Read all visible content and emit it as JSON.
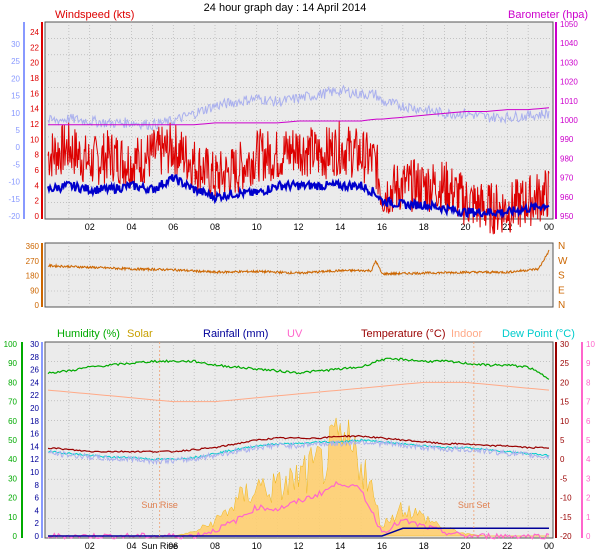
{
  "title": "24 hour graph day : 14 April 2014",
  "colors": {
    "wind": "#dd0000",
    "gust_avg": "#0000cc",
    "barometer": "#cc00cc",
    "direction": "#cc6600",
    "humidity": "#00aa00",
    "solar": "#f0b000",
    "rainfall": "#000099",
    "uv": "#ff66cc",
    "temperature": "#990000",
    "indoor": "#ffaa88",
    "dewpoint": "#00cccc",
    "left_axis_blue": "#8899ff",
    "grid": "#999999"
  },
  "chart_data": [
    {
      "type": "line",
      "name": "wind-barometer",
      "legend": {
        "left": "Windspeed (kts)",
        "right": "Barometer (hpa)"
      },
      "x_ticks": [
        "02",
        "04",
        "06",
        "08",
        "10",
        "12",
        "14",
        "16",
        "18",
        "20",
        "22",
        "00"
      ],
      "y_left_ticks": [
        "24",
        "22",
        "20",
        "18",
        "16",
        "14",
        "12",
        "10",
        "8",
        "6",
        "4",
        "2",
        "0"
      ],
      "y_left_outer_ticks": [
        "30",
        "25",
        "20",
        "15",
        "10",
        "5",
        "0",
        "-5",
        "-10",
        "-15",
        "-20"
      ],
      "y_right_ticks": [
        "1050",
        "1040",
        "1030",
        "1020",
        "1010",
        "1000",
        "990",
        "980",
        "970",
        "960",
        "950"
      ],
      "ylim_left": [
        0,
        25
      ],
      "ylim_right": [
        950,
        1050
      ],
      "hours": [
        0,
        1,
        2,
        3,
        4,
        5,
        6,
        7,
        8,
        9,
        10,
        11,
        12,
        13,
        14,
        15,
        15.7,
        16,
        17,
        18,
        19,
        20,
        21,
        22,
        23,
        24
      ],
      "series": [
        {
          "name": "Windspeed (kts)",
          "values": [
            8,
            9,
            7,
            8,
            7,
            8,
            9,
            7,
            5,
            6,
            8,
            8,
            9,
            8,
            9,
            8,
            7,
            3,
            4,
            4,
            4,
            2,
            1,
            1,
            2,
            3
          ]
        },
        {
          "values": [
            3.5,
            4,
            3.5,
            3.5,
            4,
            3.5,
            5,
            3.5,
            2.5,
            3,
            3,
            4,
            4,
            4,
            4,
            4,
            3,
            2,
            1.5,
            1.5,
            1,
            0.5,
            0.5,
            0.5,
            1,
            1.5
          ]
        },
        {
          "values": [
            12.5,
            12.8,
            12.5,
            12.2,
            12.3,
            12,
            12.5,
            13.5,
            14.5,
            15,
            15.5,
            15,
            15.5,
            16,
            16.5,
            16,
            16,
            15,
            14.5,
            14,
            13.5,
            13.5,
            13,
            13,
            13.2,
            13.5
          ]
        },
        {
          "name": "Barometer (hpa)",
          "values": [
            998,
            998,
            998,
            998,
            998,
            998,
            998,
            998,
            999,
            999,
            999,
            999,
            1000,
            1000,
            1000,
            1000,
            1001,
            1001,
            1002,
            1003,
            1004,
            1005,
            1005,
            1006,
            1006,
            1007
          ]
        }
      ]
    },
    {
      "type": "line",
      "name": "wind-direction",
      "y_left_ticks": [
        "360",
        "270",
        "180",
        "90",
        "0"
      ],
      "y_right_ticks": [
        "N",
        "W",
        "S",
        "E",
        "N"
      ],
      "ylim": [
        0,
        360
      ],
      "hours": [
        0,
        2,
        4,
        6,
        8,
        10,
        12,
        14,
        15.5,
        15.7,
        16,
        18,
        20,
        22,
        23.5,
        24
      ],
      "series": [
        {
          "values": [
            240,
            230,
            220,
            215,
            200,
            205,
            195,
            210,
            210,
            270,
            190,
            195,
            200,
            200,
            220,
            330
          ]
        }
      ]
    },
    {
      "type": "line",
      "name": "humidity-temperature",
      "legend": [
        "Humidity (%)",
        "Solar",
        "Rainfall (mm)",
        "UV",
        "Temperature (°C)",
        "Indoor",
        "Dew Point (°C)"
      ],
      "x_ticks": [
        "02",
        "04",
        "Sun Rise",
        "06",
        "08",
        "10",
        "12",
        "14",
        "16",
        "18",
        "20",
        "22",
        "00"
      ],
      "y_humidity_ticks": [
        "100",
        "90",
        "80",
        "70",
        "60",
        "50",
        "40",
        "30",
        "20",
        "10",
        "0"
      ],
      "y_rain_ticks": [
        "30",
        "28",
        "26",
        "24",
        "22",
        "20",
        "18",
        "16",
        "14",
        "12",
        "10",
        "8",
        "6",
        "4",
        "2",
        "0"
      ],
      "y_temp_ticks": [
        "30",
        "25",
        "20",
        "15",
        "10",
        "5",
        "0",
        "-5",
        "-10",
        "-15",
        "-20"
      ],
      "y_uv_ticks": [
        "10",
        "9",
        "8",
        "7",
        "6",
        "5",
        "4",
        "3",
        "2",
        "1",
        "0"
      ],
      "annotations": [
        "Sun Rise",
        "Sun Set"
      ],
      "hours": [
        0,
        1,
        2,
        3,
        4,
        5,
        6,
        7,
        8,
        9,
        10,
        11,
        12,
        13,
        14,
        15,
        16,
        17,
        18,
        19,
        20,
        21,
        22,
        23,
        24
      ],
      "series": [
        {
          "name": "Humidity (%)",
          "values": [
            85,
            86,
            88,
            89,
            90,
            91,
            91,
            91,
            89,
            88,
            87,
            86,
            85,
            86,
            87,
            88,
            92,
            92,
            91,
            91,
            90,
            89,
            89,
            88,
            82
          ]
        },
        {
          "name": "Temperature (°C)",
          "values": [
            3,
            2.5,
            2,
            2,
            2,
            2,
            2,
            2.5,
            3,
            4,
            5,
            5.5,
            5.5,
            5.5,
            6,
            6,
            5.5,
            5,
            4.5,
            4,
            4,
            3.5,
            3.5,
            3,
            3
          ]
        },
        {
          "name": "Indoor",
          "values": [
            18,
            17.5,
            17,
            16.5,
            16,
            15.5,
            15,
            15,
            15,
            15.5,
            16,
            16.5,
            17,
            17.5,
            18,
            18.5,
            19,
            19.5,
            20,
            20,
            20,
            19.5,
            19,
            18.5,
            18
          ]
        },
        {
          "name": "Dew Point (°C)",
          "values": [
            2,
            1.5,
            1,
            0.5,
            0.5,
            0,
            0,
            0.5,
            1.5,
            2.5,
            3.5,
            4,
            4,
            4.5,
            4.5,
            5,
            4.5,
            4,
            3.5,
            3,
            3,
            2.5,
            2,
            1.5,
            1
          ]
        },
        {
          "name": "Solar",
          "values": [
            0,
            0,
            0,
            0,
            0,
            0,
            0,
            0.2,
            0.7,
            1.6,
            2.4,
            2.3,
            2.8,
            3.4,
            4.4,
            3.8,
            0.5,
            1.4,
            0.9,
            0.4,
            0.1,
            0,
            0,
            0,
            0
          ]
        },
        {
          "name": "UV",
          "values": [
            0,
            0,
            0,
            0,
            0,
            0,
            0,
            0,
            0.3,
            0.8,
            1.5,
            1.4,
            1.8,
            2.2,
            2.8,
            2.4,
            0.2,
            0.8,
            0.5,
            0.2,
            0,
            0,
            0,
            0,
            0
          ]
        },
        {
          "name": "Rainfall (mm)",
          "values": [
            0,
            0,
            0,
            0,
            0,
            0,
            0,
            0,
            0,
            0,
            0,
            0,
            0,
            0,
            0,
            0,
            0,
            1.2,
            1.2,
            1.2,
            1.2,
            1.2,
            1.2,
            1.2,
            1.2
          ]
        }
      ]
    }
  ]
}
